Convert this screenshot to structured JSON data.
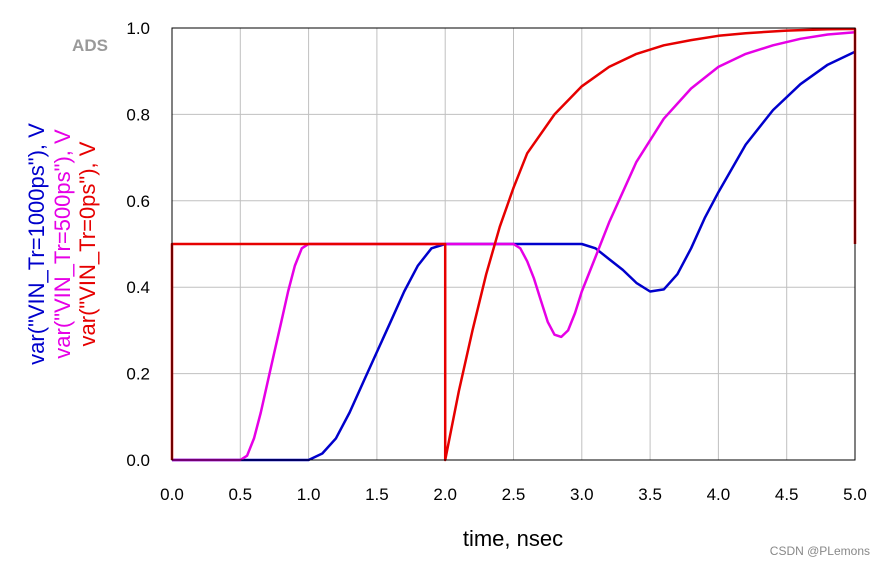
{
  "logo_text": "ADS",
  "watermark": "CSDN @PLemons",
  "chart_data": {
    "type": "line",
    "xlabel": "time, nsec",
    "xlim": [
      0,
      5
    ],
    "ylim": [
      0,
      1
    ],
    "xticks": [
      "0.0",
      "0.5",
      "1.0",
      "1.5",
      "2.0",
      "2.5",
      "3.0",
      "3.5",
      "4.0",
      "4.5",
      "5.0"
    ],
    "yticks": [
      "0.0",
      "0.2",
      "0.4",
      "0.6",
      "0.8",
      "1.0"
    ],
    "grid": true,
    "series": [
      {
        "name": "var(\"VIN_Tr=1000ps\"), V",
        "color": "#0000cc",
        "x": [
          0,
          0.5,
          1.0,
          1.1,
          1.2,
          1.3,
          1.4,
          1.5,
          1.6,
          1.7,
          1.8,
          1.9,
          2.0,
          2.2,
          2.5,
          3.0,
          3.1,
          3.2,
          3.3,
          3.4,
          3.5,
          3.6,
          3.7,
          3.8,
          3.9,
          4.0,
          4.2,
          4.4,
          4.6,
          4.8,
          5.0
        ],
        "y": [
          0,
          0,
          0,
          0.015,
          0.05,
          0.11,
          0.18,
          0.25,
          0.32,
          0.39,
          0.45,
          0.49,
          0.5,
          0.5,
          0.5,
          0.5,
          0.49,
          0.465,
          0.44,
          0.41,
          0.39,
          0.395,
          0.43,
          0.49,
          0.56,
          0.62,
          0.73,
          0.81,
          0.87,
          0.915,
          0.945
        ]
      },
      {
        "name": "var(\"VIN_Tr=500ps\"), V",
        "color": "#e600e6",
        "x": [
          0,
          0.5,
          0.55,
          0.6,
          0.65,
          0.7,
          0.75,
          0.8,
          0.85,
          0.9,
          0.95,
          1.0,
          1.5,
          2.0,
          2.5,
          2.55,
          2.6,
          2.65,
          2.7,
          2.75,
          2.8,
          2.85,
          2.9,
          2.95,
          3.0,
          3.1,
          3.2,
          3.4,
          3.6,
          3.8,
          4.0,
          4.2,
          4.4,
          4.6,
          4.8,
          5.0
        ],
        "y": [
          0,
          0,
          0.01,
          0.05,
          0.11,
          0.18,
          0.25,
          0.32,
          0.39,
          0.45,
          0.49,
          0.5,
          0.5,
          0.5,
          0.5,
          0.49,
          0.46,
          0.42,
          0.37,
          0.32,
          0.29,
          0.285,
          0.3,
          0.34,
          0.39,
          0.47,
          0.55,
          0.69,
          0.79,
          0.86,
          0.91,
          0.94,
          0.96,
          0.975,
          0.985,
          0.99
        ]
      },
      {
        "name": "var(\"VIN_Tr=0ps\"), V",
        "color": "#e60000",
        "x": [
          0,
          0,
          2.0,
          2.0,
          2.1,
          2.2,
          2.3,
          2.4,
          2.5,
          2.6,
          2.8,
          3.0,
          3.2,
          3.4,
          3.6,
          3.8,
          4.0,
          4.2,
          4.5,
          4.8,
          5.0,
          5.0
        ],
        "y": [
          0,
          0.5,
          0.5,
          0.0,
          0.16,
          0.3,
          0.43,
          0.54,
          0.63,
          0.71,
          0.8,
          0.865,
          0.91,
          0.94,
          0.96,
          0.972,
          0.982,
          0.988,
          0.994,
          0.997,
          0.998,
          0.5
        ]
      }
    ]
  }
}
